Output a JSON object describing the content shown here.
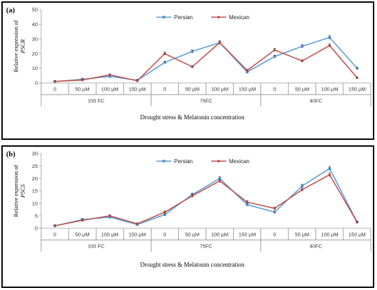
{
  "chart_data": [
    {
      "panel_label": "(a)",
      "type": "line",
      "ylabel": "Relative expression of",
      "ylabel_gene": "P5CR",
      "xlabel": "Drought stress & Melatonin concentration",
      "ylim": [
        0,
        50
      ],
      "yticks": [
        0,
        10,
        20,
        30,
        40,
        50
      ],
      "categories": [
        "0",
        "50 µM",
        "100 µM",
        "150 µM",
        "0",
        "50 µM",
        "100 µM",
        "150 µM",
        "0",
        "50 µM",
        "100 µM",
        "150 µM"
      ],
      "groups": [
        "100 FC",
        "75FC",
        "40FC"
      ],
      "legend_position": "top-center",
      "series": [
        {
          "name": "Persian",
          "color": "#5b9bd5",
          "values": [
            1,
            2.5,
            4.5,
            1.8,
            14,
            21.5,
            27.5,
            7.5,
            18,
            25,
            31,
            10
          ]
        },
        {
          "name": "Mexican",
          "color": "#c0504d",
          "values": [
            1,
            2,
            5.5,
            1.5,
            20,
            11,
            27.5,
            8.5,
            22.5,
            15,
            25.5,
            3.5
          ]
        }
      ]
    },
    {
      "panel_label": "(b)",
      "type": "line",
      "ylabel": "Relative expression of",
      "ylabel_gene": "P5CS",
      "xlabel": "Drought stress & Melatonin concentration",
      "ylim": [
        0,
        30
      ],
      "yticks": [
        0,
        5,
        10,
        15,
        20,
        25,
        30
      ],
      "categories": [
        "0",
        "50 µM",
        "100 µM",
        "150 µM",
        "0",
        "50 µM",
        "100 µM",
        "150 µM",
        "0",
        "50 µM",
        "100 µM",
        "150 µM"
      ],
      "groups": [
        "100 FC",
        "75FC",
        "40FC"
      ],
      "legend_position": "top-center",
      "series": [
        {
          "name": "Persian",
          "color": "#5b9bd5",
          "values": [
            1,
            3.5,
            4.5,
            1.5,
            5.5,
            13.5,
            20,
            9.5,
            6.5,
            17,
            24,
            2.5
          ]
        },
        {
          "name": "Mexican",
          "color": "#c0504d",
          "values": [
            1,
            3.2,
            5,
            1.8,
            6.5,
            13,
            19,
            10.5,
            8,
            15.5,
            21.5,
            2.5
          ]
        }
      ]
    }
  ]
}
